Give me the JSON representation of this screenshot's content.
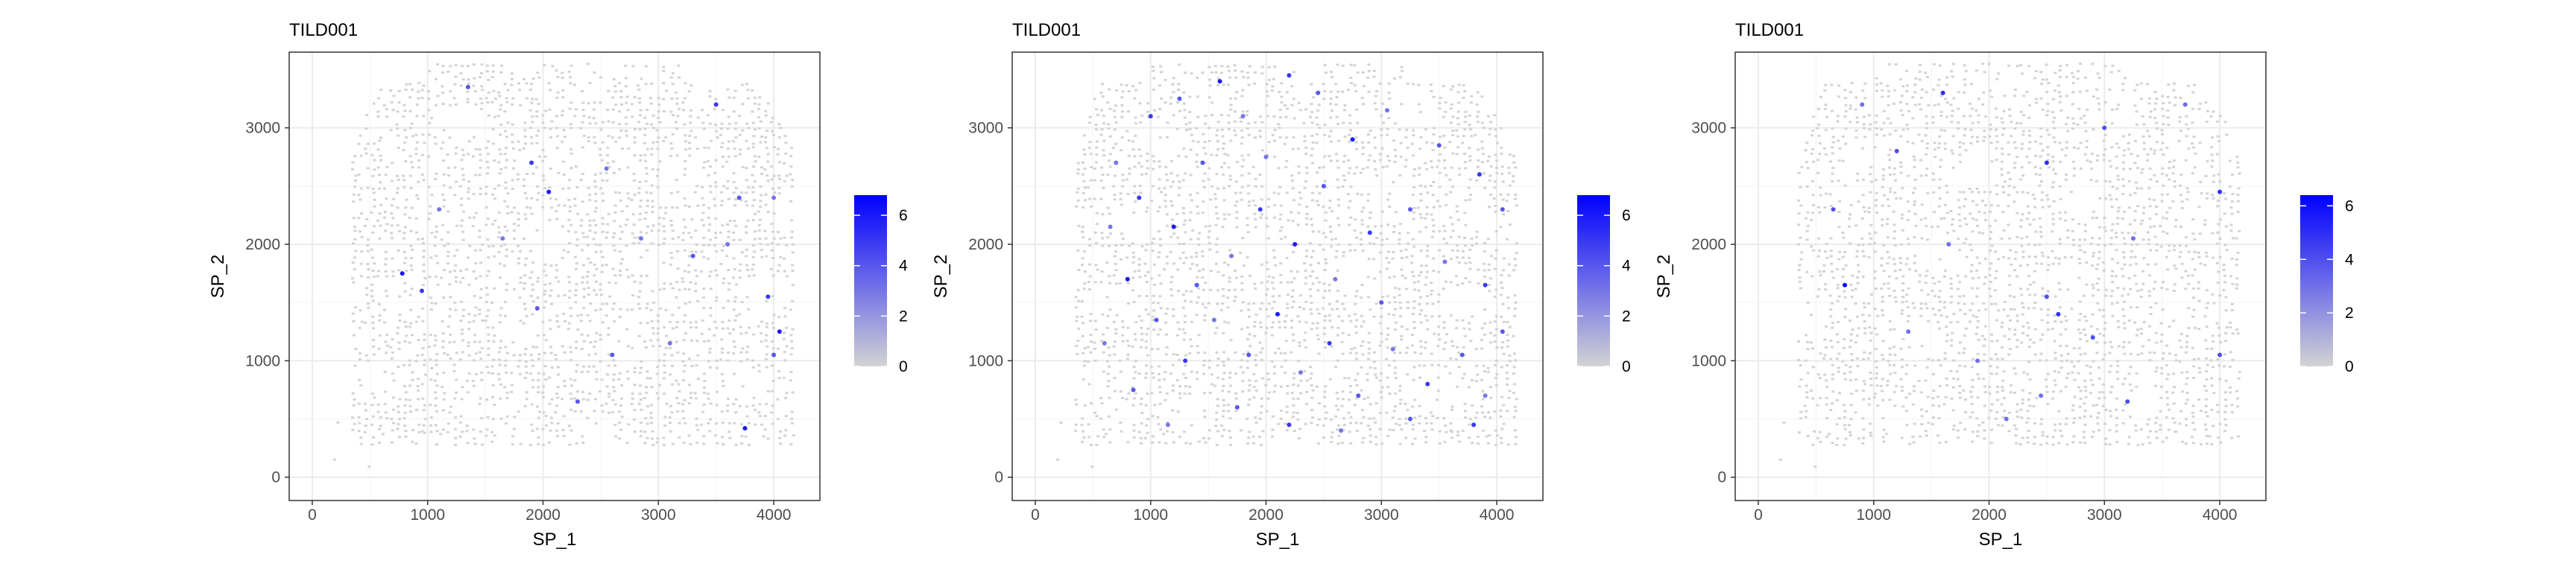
{
  "figure_title": "",
  "chart_data": [
    {
      "type": "scatter",
      "title": "TILD001",
      "xlabel": "SP_1",
      "ylabel": "SP_2",
      "xlim": [
        -200,
        4400
      ],
      "ylim": [
        -200,
        3650
      ],
      "xticks": [
        0,
        1000,
        2000,
        3000,
        4000
      ],
      "yticks": [
        0,
        1000,
        2000,
        3000
      ],
      "grid": true,
      "color_scale": {
        "low": "#d3d3d3",
        "high": "#0000ff",
        "range": [
          0,
          6.8
        ],
        "ticks": [
          0,
          2,
          4,
          6
        ]
      },
      "background_spot_color": "#d3d3d3",
      "highlight_points": [
        {
          "x": 1350,
          "y": 3350,
          "value": 4
        },
        {
          "x": 1900,
          "y": 2700,
          "value": 5
        },
        {
          "x": 2050,
          "y": 2450,
          "value": 6
        },
        {
          "x": 2550,
          "y": 2650,
          "value": 3
        },
        {
          "x": 3500,
          "y": 3200,
          "value": 5
        },
        {
          "x": 3700,
          "y": 2400,
          "value": 4
        },
        {
          "x": 4000,
          "y": 2400,
          "value": 3
        },
        {
          "x": 780,
          "y": 1750,
          "value": 6
        },
        {
          "x": 950,
          "y": 1600,
          "value": 5
        },
        {
          "x": 1650,
          "y": 2050,
          "value": 3
        },
        {
          "x": 1950,
          "y": 1450,
          "value": 4
        },
        {
          "x": 2600,
          "y": 1050,
          "value": 4
        },
        {
          "x": 3100,
          "y": 1150,
          "value": 3
        },
        {
          "x": 3300,
          "y": 1900,
          "value": 4
        },
        {
          "x": 3600,
          "y": 2000,
          "value": 3
        },
        {
          "x": 3950,
          "y": 1550,
          "value": 5
        },
        {
          "x": 4050,
          "y": 1250,
          "value": 6
        },
        {
          "x": 4000,
          "y": 1050,
          "value": 4
        },
        {
          "x": 3750,
          "y": 420,
          "value": 6
        },
        {
          "x": 1100,
          "y": 2300,
          "value": 3
        },
        {
          "x": 2300,
          "y": 650,
          "value": 4
        },
        {
          "x": 2850,
          "y": 2050,
          "value": 3
        }
      ]
    },
    {
      "type": "scatter",
      "title": "TILD001",
      "xlabel": "SP_1",
      "ylabel": "SP_2",
      "xlim": [
        -200,
        4400
      ],
      "ylim": [
        -200,
        3650
      ],
      "xticks": [
        0,
        1000,
        2000,
        3000,
        4000
      ],
      "yticks": [
        0,
        1000,
        2000,
        3000
      ],
      "grid": true,
      "color_scale": {
        "low": "#d3d3d3",
        "high": "#0000ff",
        "range": [
          0,
          6.8
        ],
        "ticks": [
          0,
          2,
          4,
          6
        ]
      },
      "background_spot_color": "#d3d3d3",
      "highlight_points": [
        {
          "x": 1000,
          "y": 3100,
          "value": 5
        },
        {
          "x": 1250,
          "y": 3250,
          "value": 4
        },
        {
          "x": 1600,
          "y": 3400,
          "value": 6
        },
        {
          "x": 1800,
          "y": 3100,
          "value": 3
        },
        {
          "x": 2200,
          "y": 3450,
          "value": 5
        },
        {
          "x": 2450,
          "y": 3300,
          "value": 4
        },
        {
          "x": 2750,
          "y": 2900,
          "value": 6
        },
        {
          "x": 3050,
          "y": 3150,
          "value": 3
        },
        {
          "x": 3500,
          "y": 2850,
          "value": 4
        },
        {
          "x": 3850,
          "y": 2600,
          "value": 5
        },
        {
          "x": 4050,
          "y": 2300,
          "value": 4
        },
        {
          "x": 650,
          "y": 2150,
          "value": 3
        },
        {
          "x": 900,
          "y": 2400,
          "value": 5
        },
        {
          "x": 1200,
          "y": 2150,
          "value": 6
        },
        {
          "x": 1450,
          "y": 2700,
          "value": 4
        },
        {
          "x": 1700,
          "y": 1900,
          "value": 3
        },
        {
          "x": 1950,
          "y": 2300,
          "value": 5
        },
        {
          "x": 2250,
          "y": 2000,
          "value": 6
        },
        {
          "x": 2500,
          "y": 2500,
          "value": 4
        },
        {
          "x": 2600,
          "y": 1700,
          "value": 3
        },
        {
          "x": 2900,
          "y": 2100,
          "value": 5
        },
        {
          "x": 3250,
          "y": 2300,
          "value": 4
        },
        {
          "x": 3550,
          "y": 1850,
          "value": 3
        },
        {
          "x": 3900,
          "y": 1650,
          "value": 5
        },
        {
          "x": 4050,
          "y": 1250,
          "value": 4
        },
        {
          "x": 600,
          "y": 1150,
          "value": 3
        },
        {
          "x": 800,
          "y": 1700,
          "value": 6
        },
        {
          "x": 1050,
          "y": 1350,
          "value": 4
        },
        {
          "x": 1300,
          "y": 1000,
          "value": 5
        },
        {
          "x": 1550,
          "y": 1350,
          "value": 3
        },
        {
          "x": 1850,
          "y": 1050,
          "value": 4
        },
        {
          "x": 2100,
          "y": 1400,
          "value": 6
        },
        {
          "x": 2300,
          "y": 900,
          "value": 3
        },
        {
          "x": 2550,
          "y": 1150,
          "value": 5
        },
        {
          "x": 2800,
          "y": 700,
          "value": 4
        },
        {
          "x": 3100,
          "y": 1100,
          "value": 3
        },
        {
          "x": 3400,
          "y": 800,
          "value": 5
        },
        {
          "x": 3700,
          "y": 1050,
          "value": 4
        },
        {
          "x": 3900,
          "y": 700,
          "value": 3
        },
        {
          "x": 850,
          "y": 750,
          "value": 4
        },
        {
          "x": 1150,
          "y": 450,
          "value": 3
        },
        {
          "x": 1750,
          "y": 600,
          "value": 4
        },
        {
          "x": 2200,
          "y": 450,
          "value": 5
        },
        {
          "x": 2650,
          "y": 400,
          "value": 3
        },
        {
          "x": 3250,
          "y": 500,
          "value": 4
        },
        {
          "x": 3800,
          "y": 450,
          "value": 5
        },
        {
          "x": 1400,
          "y": 1650,
          "value": 4
        },
        {
          "x": 2000,
          "y": 2750,
          "value": 3
        },
        {
          "x": 3000,
          "y": 1500,
          "value": 4
        },
        {
          "x": 700,
          "y": 2700,
          "value": 3
        }
      ]
    },
    {
      "type": "scatter",
      "title": "TILD001",
      "xlabel": "SP_1",
      "ylabel": "SP_2",
      "xlim": [
        -200,
        4400
      ],
      "ylim": [
        -200,
        3650
      ],
      "xticks": [
        0,
        1000,
        2000,
        3000,
        4000
      ],
      "yticks": [
        0,
        1000,
        2000,
        3000
      ],
      "grid": true,
      "color_scale": {
        "low": "#d3d3d3",
        "high": "#0000ff",
        "range": [
          0,
          6.4
        ],
        "ticks": [
          0,
          2,
          4,
          6
        ]
      },
      "background_spot_color": "#d3d3d3",
      "highlight_points": [
        {
          "x": 900,
          "y": 3200,
          "value": 3
        },
        {
          "x": 1200,
          "y": 2800,
          "value": 4
        },
        {
          "x": 1600,
          "y": 3300,
          "value": 5
        },
        {
          "x": 2500,
          "y": 2700,
          "value": 5
        },
        {
          "x": 3000,
          "y": 3000,
          "value": 4
        },
        {
          "x": 3700,
          "y": 3200,
          "value": 3
        },
        {
          "x": 4000,
          "y": 2450,
          "value": 5
        },
        {
          "x": 650,
          "y": 2300,
          "value": 4
        },
        {
          "x": 750,
          "y": 1650,
          "value": 6
        },
        {
          "x": 1650,
          "y": 2000,
          "value": 3
        },
        {
          "x": 2500,
          "y": 1550,
          "value": 4
        },
        {
          "x": 2600,
          "y": 1400,
          "value": 5
        },
        {
          "x": 1300,
          "y": 1250,
          "value": 3
        },
        {
          "x": 2900,
          "y": 1200,
          "value": 4
        },
        {
          "x": 3250,
          "y": 2050,
          "value": 3
        },
        {
          "x": 4000,
          "y": 1050,
          "value": 4
        },
        {
          "x": 2450,
          "y": 700,
          "value": 3
        },
        {
          "x": 3200,
          "y": 650,
          "value": 4
        },
        {
          "x": 2150,
          "y": 500,
          "value": 3
        },
        {
          "x": 1900,
          "y": 1000,
          "value": 3
        }
      ]
    }
  ]
}
